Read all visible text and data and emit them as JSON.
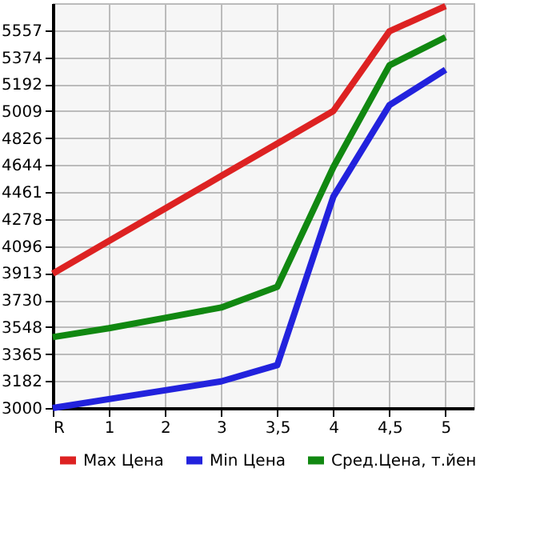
{
  "chart_data": {
    "type": "line",
    "categories": [
      "R",
      "1",
      "2",
      "3",
      "3,5",
      "4",
      "4,5",
      "5"
    ],
    "series": [
      {
        "name": "Max Цена",
        "color": "#dd2222",
        "values": [
          3910,
          4130,
          4350,
          4570,
          4790,
          5010,
          5550,
          5720
        ]
      },
      {
        "name": "Min Цена",
        "color": "#2222dd",
        "values": [
          3000,
          3060,
          3120,
          3180,
          3290,
          4430,
          5050,
          5290
        ]
      },
      {
        "name": "Сред.Цена, т.йен",
        "color": "#118811",
        "values": [
          3480,
          3540,
          3610,
          3680,
          3820,
          4630,
          5320,
          5510
        ]
      }
    ],
    "ylim": [
      3000,
      5740
    ],
    "yticks": [
      3000,
      3182,
      3365,
      3548,
      3730,
      3913,
      4096,
      4278,
      4461,
      4644,
      4826,
      5009,
      5192,
      5374,
      5557
    ],
    "grid": true,
    "legend": "bottom",
    "marker": "none",
    "line_style": "solid"
  }
}
